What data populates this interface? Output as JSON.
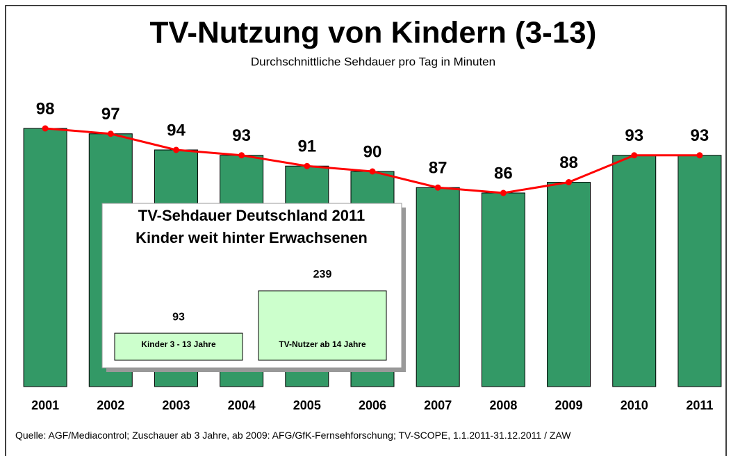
{
  "chart_data": [
    {
      "type": "bar",
      "title": "TV-Nutzung von Kindern (3-13)",
      "subtitle": "Durchschnittliche Sehdauer pro Tag in Minuten",
      "categories": [
        "2001",
        "2002",
        "2003",
        "2004",
        "2005",
        "2006",
        "2007",
        "2008",
        "2009",
        "2010",
        "2011"
      ],
      "values": [
        98,
        97,
        94,
        93,
        91,
        90,
        87,
        86,
        88,
        93,
        93
      ],
      "color": "#339966",
      "line_color": "#ff0000",
      "ylim": [
        50,
        105
      ]
    },
    {
      "type": "bar",
      "title": "TV-Sehdauer Deutschland 2011",
      "subtitle": "Kinder weit hinter Erwachsenen",
      "categories": [
        "Kinder 3 - 13 Jahre",
        "TV-Nutzer ab 14 Jahre"
      ],
      "values": [
        93,
        239
      ],
      "color": "#ccffcc",
      "ylim": [
        0,
        250
      ]
    }
  ],
  "source": "Quelle: AGF/Mediacontrol; Zuschauer ab 3 Jahre, ab 2009: AFG/GfK-Fernsehforschung; TV-SCOPE, 1.1.2011-31.12.2011 / ZAW"
}
